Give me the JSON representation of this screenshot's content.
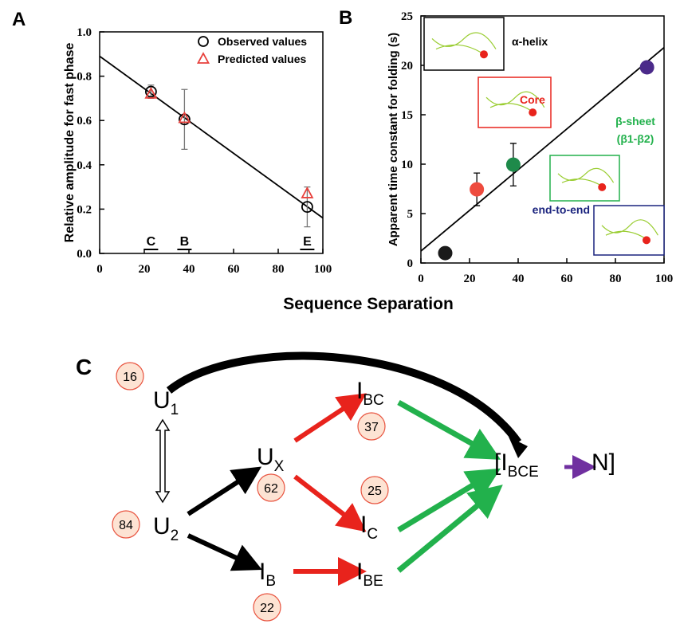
{
  "figure": {
    "x_label": "Sequence Separation"
  },
  "chart_data": [
    {
      "panel": "A",
      "type": "scatter",
      "y_label": "Relative amplitude for fast phase",
      "xlim": [
        0,
        100
      ],
      "xticks": [
        0,
        20,
        40,
        60,
        80,
        100
      ],
      "ylim": [
        0,
        1
      ],
      "yticks": [
        {
          "value": 0,
          "label": "0.0"
        },
        0.2,
        0.4,
        0.6,
        0.8,
        {
          "value": 1,
          "label": "1.0"
        }
      ],
      "x": [
        23,
        38,
        93
      ],
      "series": [
        {
          "name": "Observed values",
          "color": "#000000",
          "marker": "circle-open",
          "values": [
            0.73,
            0.605,
            0.21
          ],
          "errors": [
            0.03,
            0.135,
            0.09
          ]
        },
        {
          "name": "Predicted values",
          "color": "#e8413c",
          "marker": "triangle-open",
          "values": [
            0.72,
            0.61,
            0.27
          ]
        }
      ],
      "fit_line": {
        "x": [
          0,
          100
        ],
        "y": [
          0.89,
          0.16
        ]
      },
      "annotations": [
        {
          "text": "C",
          "x": 23
        },
        {
          "text": "B",
          "x": 38
        },
        {
          "text": "E",
          "x": 93
        }
      ],
      "legend": "upper right"
    },
    {
      "panel": "B",
      "type": "scatter",
      "y_label": "Apparent time constant for folding (s)",
      "xlim": [
        0,
        100
      ],
      "xticks": [
        0,
        20,
        40,
        60,
        80,
        100
      ],
      "ylim": [
        0,
        25
      ],
      "yticks": [
        0,
        5,
        10,
        15,
        20,
        25
      ],
      "x": [
        10,
        23,
        38,
        93
      ],
      "series": [
        {
          "marker": "circle",
          "colors": [
            "#1a1a1a",
            "#ee4b3e",
            "#1e8a4a",
            "#4b2a8a"
          ],
          "values": [
            1.0,
            7.45,
            9.95,
            19.8
          ],
          "errors": [
            null,
            1.65,
            2.15,
            null
          ]
        }
      ],
      "fit_line": {
        "x": [
          0,
          100
        ],
        "y": [
          1.2,
          21.8
        ]
      },
      "insets": [
        {
          "label": [
            "α-helix"
          ],
          "color": "#000000"
        },
        {
          "label": [
            "Core"
          ],
          "color": "#e8231c"
        },
        {
          "label": [
            "β-sheet",
            "(β1-β2)"
          ],
          "color": "#22b14c"
        },
        {
          "label": [
            "end-to-end"
          ],
          "color": "#1a237e"
        }
      ]
    }
  ],
  "diagram": {
    "panel": "C",
    "nodes": [
      {
        "label": "U",
        "sub": "1",
        "badge": "16"
      },
      {
        "label": "U",
        "sub": "2",
        "badge": "84"
      },
      {
        "label": "U",
        "sub": "X",
        "badge": "62"
      },
      {
        "label": "I",
        "sub": "BC",
        "badge": "37"
      },
      {
        "label": "I",
        "sub": "C",
        "badge": "25"
      },
      {
        "label": "I",
        "sub": "B",
        "badge": "22"
      },
      {
        "label": "I",
        "sub": "BE"
      },
      {
        "label": "[I",
        "sub": "BCE"
      },
      {
        "label": "N]"
      }
    ]
  }
}
